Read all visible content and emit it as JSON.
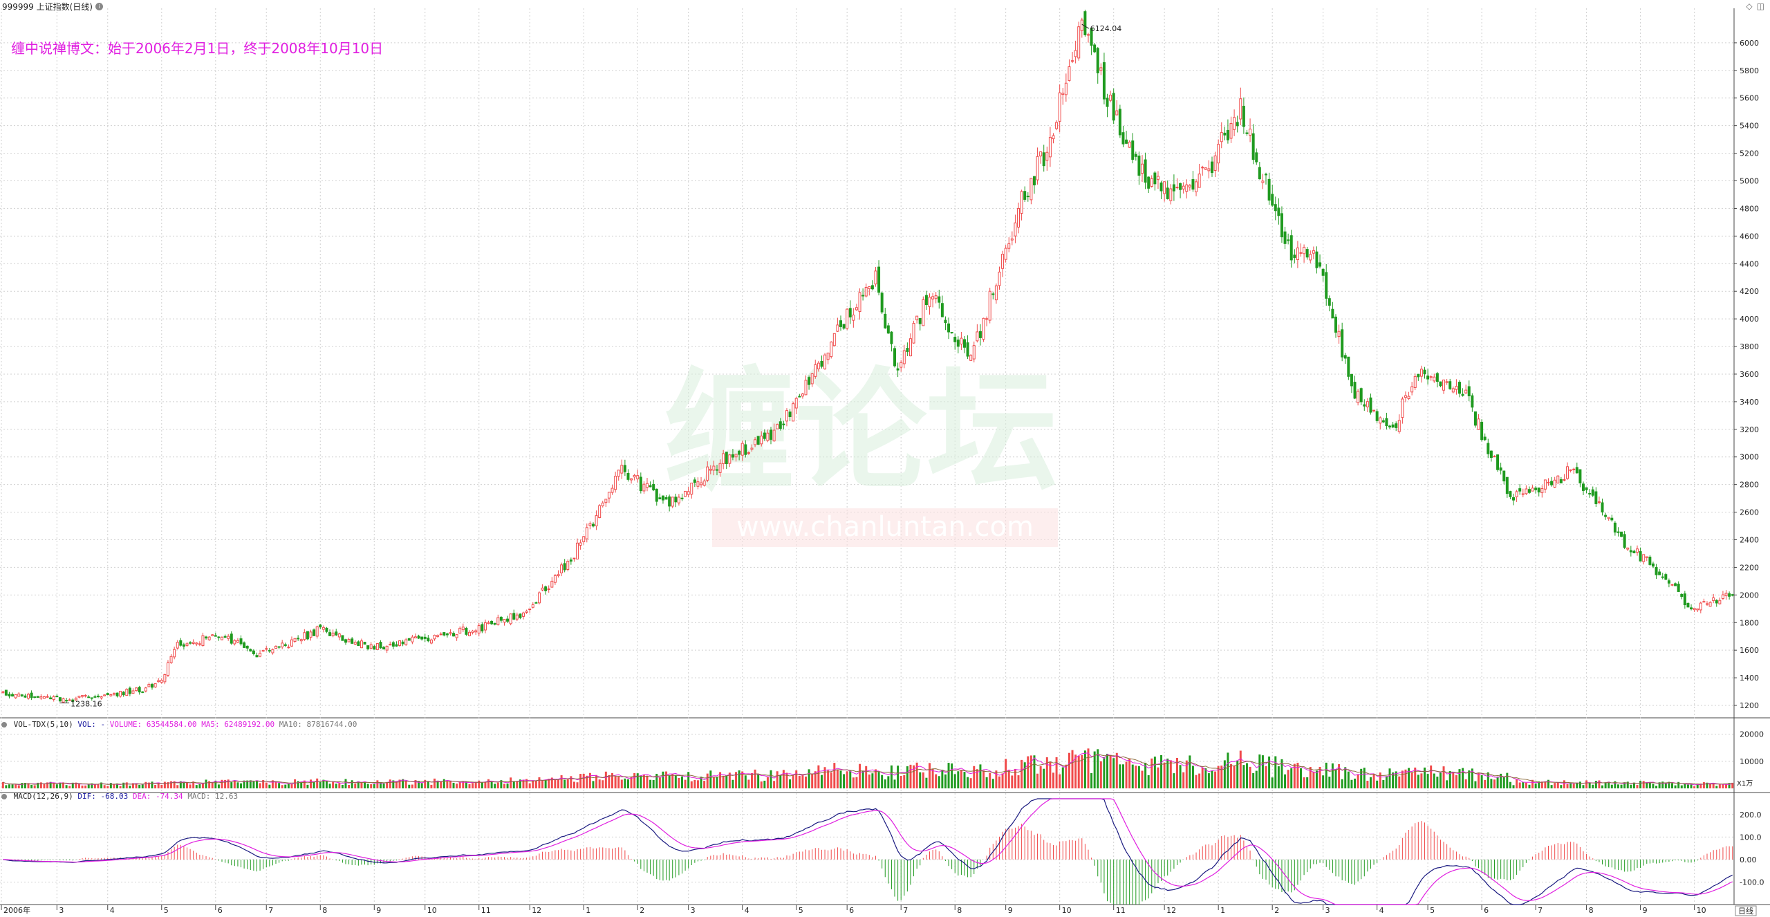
{
  "header": {
    "symbol_title": "999999 上证指数(日线)",
    "article_title": "缠中说禅博文：始于2006年2月1日，终于2008年10月10日",
    "period_button": "日线",
    "corner_icons": [
      "diamond-icon",
      "window-icon"
    ]
  },
  "watermark": {
    "text_cn": "缠论坛",
    "text_url": "www.chanluntan.com"
  },
  "colors": {
    "up": "#f04a4a",
    "down": "#1f9a1f",
    "dif_line": "#1a1a80",
    "dea_line": "#e020e0",
    "grid": "#d0d0d0",
    "title": "#e020e0"
  },
  "chart_data": [
    {
      "type": "candlestick",
      "panel": "price",
      "ylim": [
        1150,
        6250
      ],
      "yticks": [
        "6000",
        "5800",
        "5600",
        "5400",
        "5200",
        "5000",
        "4800",
        "4600",
        "4400",
        "4200",
        "4000",
        "3800",
        "3600",
        "3400",
        "3200",
        "3000",
        "2800",
        "2600",
        "2400",
        "2200",
        "2000",
        "1800",
        "1600",
        "1400",
        "1200"
      ],
      "x_axis_labels": [
        "2006年",
        "3",
        "4",
        "5",
        "6",
        "7",
        "8",
        "9",
        "10",
        "11",
        "12",
        "1",
        "2",
        "3",
        "4",
        "5",
        "6",
        "7",
        "8",
        "9",
        "10",
        "11",
        "12",
        "1",
        "2",
        "3",
        "4",
        "5",
        "6",
        "7",
        "8",
        "9",
        "10"
      ],
      "annotations": [
        {
          "label": "6124.04",
          "x_index": 340,
          "y": 6124.04
        },
        {
          "label": "1238.16",
          "x_index": 20,
          "y": 1238.16
        }
      ],
      "keypoints_close": [
        [
          0,
          1280
        ],
        [
          20,
          1238
        ],
        [
          45,
          1320
        ],
        [
          50,
          1380
        ],
        [
          55,
          1650
        ],
        [
          70,
          1700
        ],
        [
          80,
          1560
        ],
        [
          90,
          1650
        ],
        [
          100,
          1750
        ],
        [
          110,
          1650
        ],
        [
          120,
          1620
        ],
        [
          135,
          1700
        ],
        [
          150,
          1760
        ],
        [
          165,
          1880
        ],
        [
          180,
          2300
        ],
        [
          195,
          2900
        ],
        [
          210,
          2650
        ],
        [
          225,
          2950
        ],
        [
          245,
          3200
        ],
        [
          265,
          4000
        ],
        [
          275,
          4300
        ],
        [
          282,
          3600
        ],
        [
          292,
          4200
        ],
        [
          305,
          3700
        ],
        [
          320,
          4800
        ],
        [
          330,
          5300
        ],
        [
          340,
          6124
        ],
        [
          350,
          5500
        ],
        [
          360,
          5000
        ],
        [
          375,
          4900
        ],
        [
          390,
          5500
        ],
        [
          405,
          4500
        ],
        [
          415,
          4400
        ],
        [
          425,
          3500
        ],
        [
          438,
          3200
        ],
        [
          445,
          3600
        ],
        [
          460,
          3500
        ],
        [
          475,
          2700
        ],
        [
          495,
          2900
        ],
        [
          510,
          2400
        ],
        [
          525,
          2100
        ],
        [
          532,
          1900
        ],
        [
          545,
          2000
        ]
      ],
      "price_bars_count": 546
    },
    {
      "type": "bar",
      "panel": "volume",
      "title": "VOL-TDX(5,10)",
      "legend": [
        "VOL: -",
        "VOLUME: 63544584.00",
        "MA5: 62489192.00",
        "MA10: 87816744.00"
      ],
      "ylim": [
        0,
        23000
      ],
      "yticks": [
        "20000",
        "10000"
      ],
      "unit": "X1万"
    },
    {
      "type": "bar",
      "panel": "macd",
      "title": "MACD(12,26,9)",
      "legend": [
        "DIF: -68.03",
        "DEA: -74.34",
        "MACD: 12.63"
      ],
      "ylim": [
        -200,
        270
      ],
      "yticks": [
        "200.0",
        "100.0",
        "0.00",
        "-100.0"
      ]
    }
  ]
}
